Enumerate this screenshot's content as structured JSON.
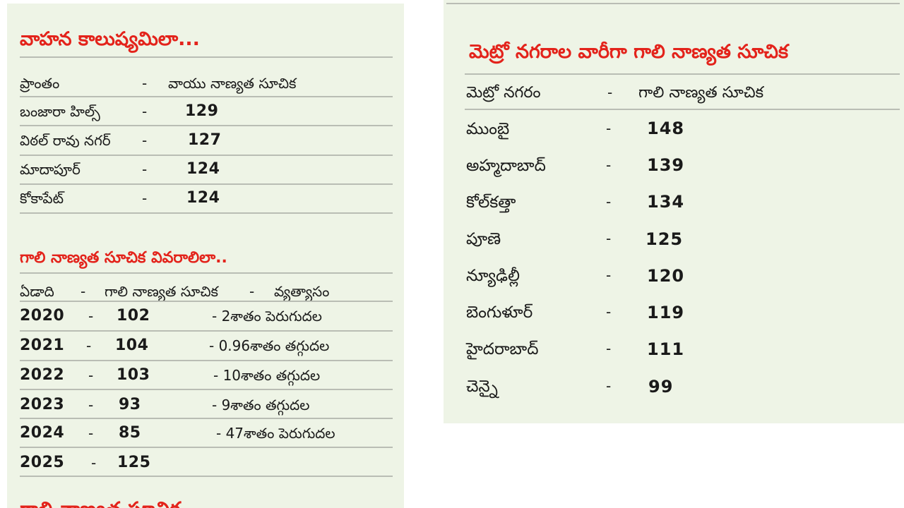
{
  "left": {
    "vehicle_section": {
      "title": "వాహన కాలుష్యమిలా...",
      "header": {
        "area": "ప్రాంతం",
        "dash": "-",
        "aqi": "వాయు నాణ్యత సూచిక"
      },
      "rows": [
        {
          "area": "బంజారా హిల్స్",
          "dash": "-",
          "aqi": "129"
        },
        {
          "area": "విఠల్ రావు నగర్",
          "dash": "-",
          "aqi": "127"
        },
        {
          "area": "మాదాపూర్",
          "dash": "-",
          "aqi": "124"
        },
        {
          "area": "కోకాపేట్",
          "dash": "-",
          "aqi": "124"
        }
      ]
    },
    "aqi_section": {
      "title": "గాలి నాణ్యత సూచిక వివరాలిలా..",
      "header": {
        "year": "ఏడాది",
        "dash1": "-",
        "aqi": "గాలి నాణ్యత సూచిక",
        "dash2": "-",
        "diff": "వ్యత్యాసం"
      },
      "rows": [
        {
          "year": "2020",
          "dash1": "-",
          "aqi": "102",
          "diff": "- 2శాతం పెరుగుదల"
        },
        {
          "year": "2021",
          "dash1": "-",
          "aqi": "104",
          "diff": "- 0.96శాతం తగ్గుదల"
        },
        {
          "year": "2022",
          "dash1": "-",
          "aqi": "103",
          "diff": "- 10శాతం తగ్గుదల"
        },
        {
          "year": "2023",
          "dash1": "-",
          "aqi": "93",
          "diff": "- 9శాతం తగ్గుదల"
        },
        {
          "year": "2024",
          "dash1": "-",
          "aqi": "85",
          "diff": "- 47శాతం పెరుగుదల"
        },
        {
          "year": "2025",
          "dash1": "-",
          "aqi": "125",
          "diff": ""
        }
      ]
    },
    "cut_title": "గాలి నాణ్యత సూచిక"
  },
  "right": {
    "metro_section": {
      "title": "మెట్రో నగరాల వారీగా గాలి నాణ్యత సూచిక",
      "header": {
        "city": "మెట్రో నగరం",
        "dash": "-",
        "aqi": "గాలి నాణ్యత సూచిక"
      },
      "rows": [
        {
          "city": "ముంబై",
          "dash": "-",
          "aqi": "148"
        },
        {
          "city": "అహ్మదాబాద్",
          "dash": "-",
          "aqi": "139"
        },
        {
          "city": "కోల్‌కత్తా",
          "dash": "-",
          "aqi": "134"
        },
        {
          "city": "పూణె",
          "dash": "-",
          "aqi": "125"
        },
        {
          "city": "న్యూఢిల్లీ",
          "dash": "-",
          "aqi": "120"
        },
        {
          "city": "బెంగుళూర్",
          "dash": "-",
          "aqi": "119"
        },
        {
          "city": "హైదరాబాద్",
          "dash": "-",
          "aqi": "111"
        },
        {
          "city": "చెన్నై",
          "dash": "-",
          "aqi": "99"
        }
      ]
    }
  },
  "colors": {
    "panel_bg": "#eef4e6",
    "title_red": "#e3231b",
    "rule": "#b9bdb4"
  }
}
